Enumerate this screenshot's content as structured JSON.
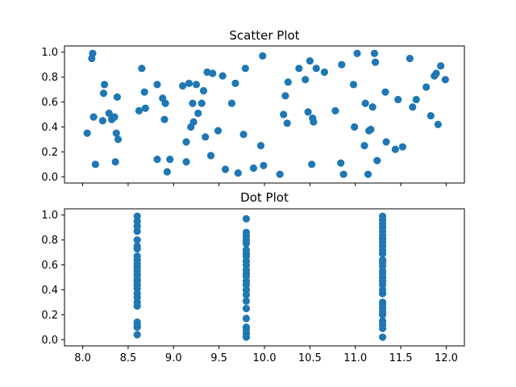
{
  "figure": {
    "background": "#ffffff"
  },
  "style": {
    "marker_color": "#1f77b4",
    "axes_color": "#000000"
  },
  "chart_data": [
    {
      "type": "scatter",
      "title": "Scatter Plot",
      "xlabel": "",
      "ylabel": "",
      "xlim": [
        7.8,
        12.2
      ],
      "ylim": [
        -0.05,
        1.05
      ],
      "xticks": [
        8.0,
        8.5,
        9.0,
        9.5,
        10.0,
        10.5,
        11.0,
        11.5,
        12.0
      ],
      "xtick_labels_visible": false,
      "yticks": [
        0.0,
        0.2,
        0.4,
        0.6,
        0.8,
        1.0
      ],
      "ytick_labels": [
        "0.0",
        "0.2",
        "0.4",
        "0.6",
        "0.8",
        "1.0"
      ],
      "grid": false,
      "legend": false,
      "series": [
        {
          "color": "#1f77b4",
          "points": [
            [
              8.05,
              0.35
            ],
            [
              8.1,
              0.95
            ],
            [
              8.11,
              0.99
            ],
            [
              8.12,
              0.48
            ],
            [
              8.14,
              0.1
            ],
            [
              8.22,
              0.45
            ],
            [
              8.23,
              0.67
            ],
            [
              8.24,
              0.74
            ],
            [
              8.29,
              0.51
            ],
            [
              8.32,
              0.46
            ],
            [
              8.35,
              0.48
            ],
            [
              8.36,
              0.12
            ],
            [
              8.37,
              0.35
            ],
            [
              8.38,
              0.64
            ],
            [
              8.39,
              0.3
            ],
            [
              8.62,
              0.53
            ],
            [
              8.65,
              0.87
            ],
            [
              8.68,
              0.68
            ],
            [
              8.69,
              0.55
            ],
            [
              8.82,
              0.74
            ],
            [
              8.82,
              0.14
            ],
            [
              8.88,
              0.63
            ],
            [
              8.9,
              0.46
            ],
            [
              8.91,
              0.59
            ],
            [
              8.93,
              0.04
            ],
            [
              8.96,
              0.14
            ],
            [
              9.1,
              0.73
            ],
            [
              9.14,
              0.28
            ],
            [
              9.14,
              0.12
            ],
            [
              9.17,
              0.75
            ],
            [
              9.19,
              0.4
            ],
            [
              9.21,
              0.59
            ],
            [
              9.22,
              0.44
            ],
            [
              9.25,
              0.74
            ],
            [
              9.27,
              0.51
            ],
            [
              9.31,
              0.59
            ],
            [
              9.33,
              0.69
            ],
            [
              9.35,
              0.32
            ],
            [
              9.37,
              0.84
            ],
            [
              9.41,
              0.17
            ],
            [
              9.43,
              0.83
            ],
            [
              9.49,
              0.37
            ],
            [
              9.54,
              0.81
            ],
            [
              9.57,
              0.06
            ],
            [
              9.64,
              0.59
            ],
            [
              9.68,
              0.75
            ],
            [
              9.71,
              0.03
            ],
            [
              9.77,
              0.34
            ],
            [
              9.79,
              0.87
            ],
            [
              9.88,
              0.07
            ],
            [
              9.96,
              0.25
            ],
            [
              9.98,
              0.97
            ],
            [
              9.99,
              0.09
            ],
            [
              10.17,
              0.02
            ],
            [
              10.21,
              0.5
            ],
            [
              10.23,
              0.65
            ],
            [
              10.25,
              0.43
            ],
            [
              10.26,
              0.76
            ],
            [
              10.38,
              0.87
            ],
            [
              10.45,
              0.78
            ],
            [
              10.48,
              0.52
            ],
            [
              10.5,
              0.93
            ],
            [
              10.52,
              0.1
            ],
            [
              10.53,
              0.47
            ],
            [
              10.54,
              0.44
            ],
            [
              10.57,
              0.87
            ],
            [
              10.66,
              0.84
            ],
            [
              10.78,
              0.53
            ],
            [
              10.84,
              0.11
            ],
            [
              10.85,
              0.9
            ],
            [
              10.87,
              0.02
            ],
            [
              10.98,
              0.74
            ],
            [
              10.99,
              0.4
            ],
            [
              11.02,
              0.99
            ],
            [
              11.1,
              0.25
            ],
            [
              11.11,
              0.59
            ],
            [
              11.14,
              0.02
            ],
            [
              11.15,
              0.37
            ],
            [
              11.17,
              0.38
            ],
            [
              11.19,
              0.56
            ],
            [
              11.21,
              0.99
            ],
            [
              11.22,
              0.92
            ],
            [
              11.24,
              0.13
            ],
            [
              11.33,
              0.68
            ],
            [
              11.34,
              0.28
            ],
            [
              11.44,
              0.22
            ],
            [
              11.47,
              0.62
            ],
            [
              11.52,
              0.24
            ],
            [
              11.6,
              0.95
            ],
            [
              11.63,
              0.56
            ],
            [
              11.67,
              0.62
            ],
            [
              11.78,
              0.72
            ],
            [
              11.83,
              0.49
            ],
            [
              11.87,
              0.81
            ],
            [
              11.89,
              0.83
            ],
            [
              11.91,
              0.42
            ],
            [
              11.94,
              0.89
            ],
            [
              11.99,
              0.78
            ]
          ]
        }
      ]
    },
    {
      "type": "scatter",
      "title": "Dot Plot",
      "xlabel": "",
      "ylabel": "",
      "xlim": [
        7.8,
        12.2
      ],
      "ylim": [
        -0.05,
        1.05
      ],
      "xticks": [
        8.0,
        8.5,
        9.0,
        9.5,
        10.0,
        10.5,
        11.0,
        11.5,
        12.0
      ],
      "xtick_labels": [
        "8.0",
        "8.5",
        "9.0",
        "9.5",
        "10.0",
        "10.5",
        "11.0",
        "11.5",
        "12.0"
      ],
      "yticks": [
        0.0,
        0.2,
        0.4,
        0.6,
        0.8,
        1.0
      ],
      "ytick_labels": [
        "0.0",
        "0.2",
        "0.4",
        "0.6",
        "0.8",
        "1.0"
      ],
      "grid": false,
      "legend": false,
      "series": [
        {
          "color": "#1f77b4",
          "groups": [
            {
              "x": 8.6,
              "y": [
                0.04,
                0.1,
                0.12,
                0.14,
                0.27,
                0.3,
                0.34,
                0.37,
                0.41,
                0.44,
                0.47,
                0.49,
                0.52,
                0.55,
                0.58,
                0.61,
                0.64,
                0.67,
                0.73,
                0.75,
                0.8,
                0.87,
                0.91,
                0.95,
                0.99
              ]
            },
            {
              "x": 9.8,
              "y": [
                0.02,
                0.05,
                0.08,
                0.1,
                0.17,
                0.25,
                0.31,
                0.36,
                0.4,
                0.44,
                0.47,
                0.51,
                0.53,
                0.56,
                0.6,
                0.63,
                0.67,
                0.69,
                0.72,
                0.77,
                0.8,
                0.83,
                0.86,
                0.97
              ]
            },
            {
              "x": 11.3,
              "y": [
                0.02,
                0.09,
                0.12,
                0.15,
                0.2,
                0.22,
                0.25,
                0.28,
                0.3,
                0.37,
                0.4,
                0.44,
                0.47,
                0.5,
                0.53,
                0.55,
                0.59,
                0.62,
                0.64,
                0.69,
                0.72,
                0.75,
                0.78,
                0.81,
                0.84,
                0.87,
                0.9,
                0.93,
                0.96,
                0.99
              ]
            }
          ]
        }
      ]
    }
  ]
}
